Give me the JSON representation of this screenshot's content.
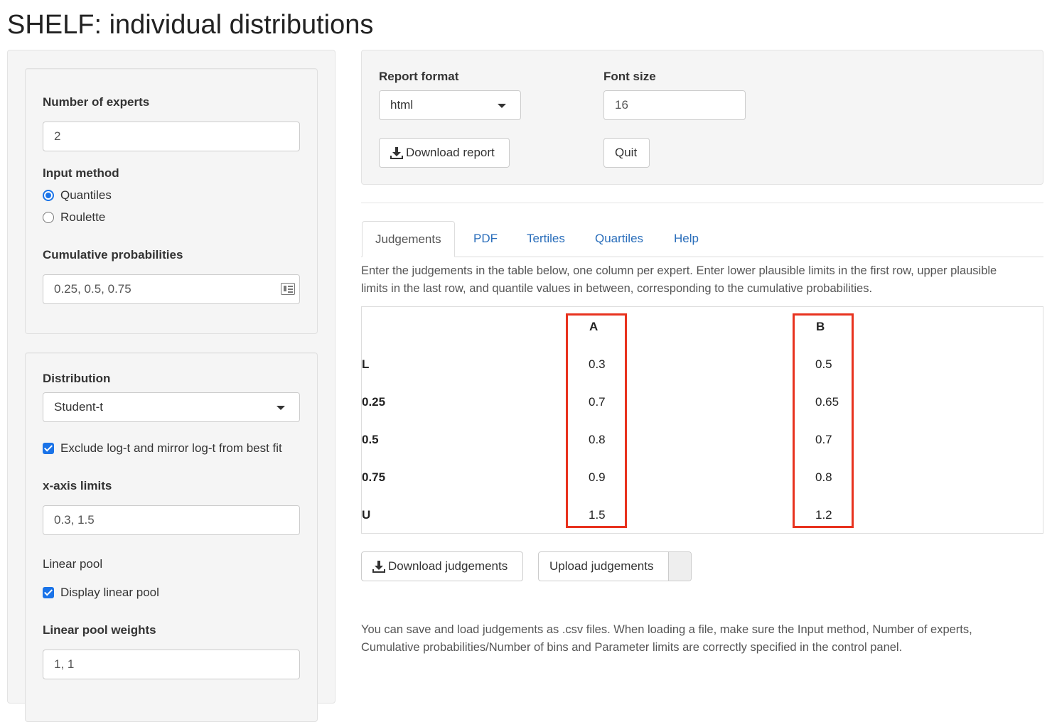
{
  "page_title": "SHELF: individual distributions",
  "sidebar": {
    "num_experts": {
      "label": "Number of experts",
      "value": "2"
    },
    "input_method": {
      "label": "Input method",
      "options": [
        {
          "label": "Quantiles",
          "selected": true
        },
        {
          "label": "Roulette",
          "selected": false
        }
      ]
    },
    "cumulative_probabilities": {
      "label": "Cumulative probabilities",
      "value": "0.25, 0.5, 0.75"
    },
    "distribution": {
      "label": "Distribution",
      "value": "Student-t"
    },
    "exclude_log_t": {
      "label": "Exclude log-t and mirror log-t from best fit",
      "checked": true
    },
    "x_axis_limits": {
      "label": "x-axis limits",
      "value": "0.3, 1.5"
    },
    "linear_pool": {
      "label": "Linear pool",
      "checkbox_label": "Display linear pool",
      "checked": true
    },
    "linear_pool_weights": {
      "label": "Linear pool weights",
      "value": "1, 1"
    }
  },
  "report": {
    "format_label": "Report format",
    "format_value": "html",
    "font_size_label": "Font size",
    "font_size_value": "16",
    "download_report_label": "Download report",
    "quit_label": "Quit"
  },
  "tabs": [
    {
      "label": "Judgements",
      "active": true
    },
    {
      "label": "PDF",
      "active": false
    },
    {
      "label": "Tertiles",
      "active": false
    },
    {
      "label": "Quartiles",
      "active": false
    },
    {
      "label": "Help",
      "active": false
    }
  ],
  "instructions": {
    "line1": "Enter the judgements in the table below, one column per expert. Enter lower plausible limits in the first row, upper plausible",
    "line2": "limits in the last row, and quantile values in between, corresponding to the cumulative probabilities."
  },
  "judgements_table": {
    "columns": [
      "A",
      "B"
    ],
    "row_labels": [
      "L",
      "0.25",
      "0.5",
      "0.75",
      "U"
    ],
    "values": {
      "A": [
        "0.3",
        "0.7",
        "0.8",
        "0.9",
        "1.5"
      ],
      "B": [
        "0.5",
        "0.65",
        "0.7",
        "0.8",
        "1.2"
      ]
    }
  },
  "buttons": {
    "download_judgements": "Download judgements",
    "upload_judgements": "Upload judgements"
  },
  "footer_note": {
    "line1": "You can save and load judgements as .csv files. When loading a file, make sure the Input method, Number of experts,",
    "line2": "Cumulative probabilities/Number of bins and Parameter limits are correctly specified in the control panel."
  },
  "colors": {
    "accent": "#1a73e8",
    "tab_link": "#2a6ebb",
    "highlight": "#e8321e"
  }
}
